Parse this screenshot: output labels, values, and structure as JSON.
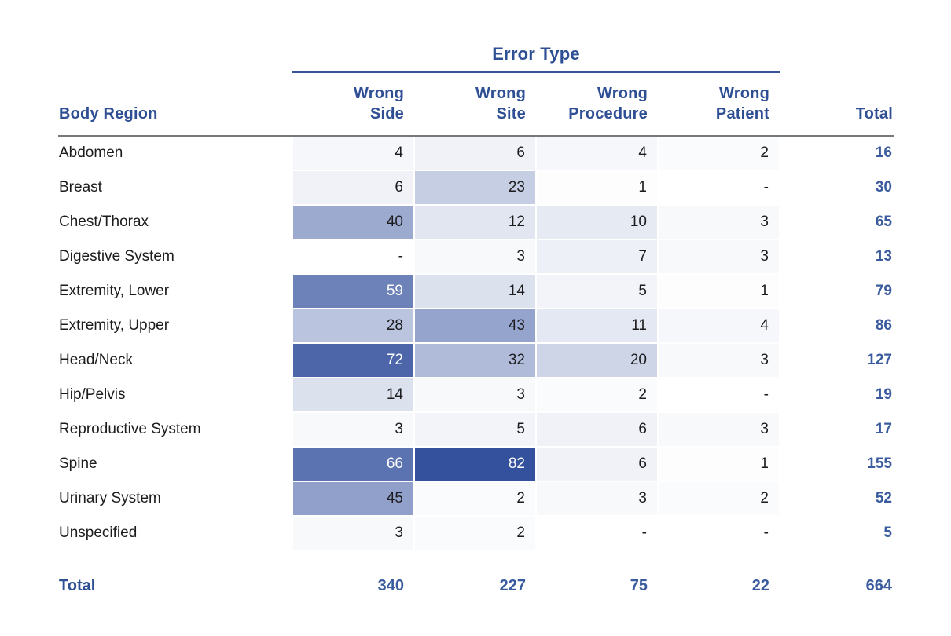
{
  "colors": {
    "accent": "#2e4f94",
    "total_text": "#3a5c9e",
    "rule_blue": "#35549b",
    "rule_gray": "#75787c",
    "body_text": "#1c1c1e",
    "heat_min": "#ffffff",
    "heat_max": "#34519e"
  },
  "heatmap": {
    "max_value": 82,
    "white_text_threshold": 0.6
  },
  "table": {
    "group_header": "Error Type",
    "region_header": "Body Region",
    "error_columns": [
      "Wrong\nSide",
      "Wrong\nSite",
      "Wrong\nProcedure",
      "Wrong\nPatient"
    ],
    "total_header": "Total",
    "empty_marker": "-",
    "rows": [
      {
        "region": "Abdomen",
        "values": [
          4,
          6,
          4,
          2
        ],
        "total": 16
      },
      {
        "region": "Breast",
        "values": [
          6,
          23,
          1,
          null
        ],
        "total": 30
      },
      {
        "region": "Chest/Thorax",
        "values": [
          40,
          12,
          10,
          3
        ],
        "total": 65
      },
      {
        "region": "Digestive System",
        "values": [
          null,
          3,
          7,
          3
        ],
        "total": 13
      },
      {
        "region": "Extremity, Lower",
        "values": [
          59,
          14,
          5,
          1
        ],
        "total": 79
      },
      {
        "region": "Extremity, Upper",
        "values": [
          28,
          43,
          11,
          4
        ],
        "total": 86
      },
      {
        "region": "Head/Neck",
        "values": [
          72,
          32,
          20,
          3
        ],
        "total": 127
      },
      {
        "region": "Hip/Pelvis",
        "values": [
          14,
          3,
          2,
          null
        ],
        "total": 19
      },
      {
        "region": "Reproductive System",
        "values": [
          3,
          5,
          6,
          3
        ],
        "total": 17
      },
      {
        "region": "Spine",
        "values": [
          66,
          82,
          6,
          1
        ],
        "total": 155
      },
      {
        "region": "Urinary System",
        "values": [
          45,
          2,
          3,
          2
        ],
        "total": 52
      },
      {
        "region": "Unspecified",
        "values": [
          3,
          2,
          null,
          null
        ],
        "total": 5
      }
    ],
    "totals": {
      "label": "Total",
      "values": [
        340,
        227,
        75,
        22
      ],
      "grand_total": 664
    }
  },
  "chart_data": {
    "type": "heatmap",
    "title": "Error Type",
    "x_categories": [
      "Wrong Side",
      "Wrong Site",
      "Wrong Procedure",
      "Wrong Patient"
    ],
    "y_categories": [
      "Abdomen",
      "Breast",
      "Chest/Thorax",
      "Digestive System",
      "Extremity, Lower",
      "Extremity, Upper",
      "Head/Neck",
      "Hip/Pelvis",
      "Reproductive System",
      "Spine",
      "Urinary System",
      "Unspecified"
    ],
    "values": [
      [
        4,
        6,
        4,
        2
      ],
      [
        6,
        23,
        1,
        null
      ],
      [
        40,
        12,
        10,
        3
      ],
      [
        null,
        3,
        7,
        3
      ],
      [
        59,
        14,
        5,
        1
      ],
      [
        28,
        43,
        11,
        4
      ],
      [
        72,
        32,
        20,
        3
      ],
      [
        14,
        3,
        2,
        null
      ],
      [
        3,
        5,
        6,
        3
      ],
      [
        66,
        82,
        6,
        1
      ],
      [
        45,
        2,
        3,
        2
      ],
      [
        3,
        2,
        null,
        null
      ]
    ],
    "row_totals": [
      16,
      30,
      65,
      13,
      79,
      86,
      127,
      19,
      17,
      155,
      52,
      5
    ],
    "column_totals": [
      340,
      227,
      75,
      22
    ],
    "grand_total": 664,
    "color_scale": {
      "min": "#ffffff",
      "max": "#34519e",
      "domain": [
        0,
        82
      ]
    },
    "layout": {
      "row_label_header": "Body Region",
      "totals_column": "Total",
      "grid": false,
      "legend": false
    }
  }
}
